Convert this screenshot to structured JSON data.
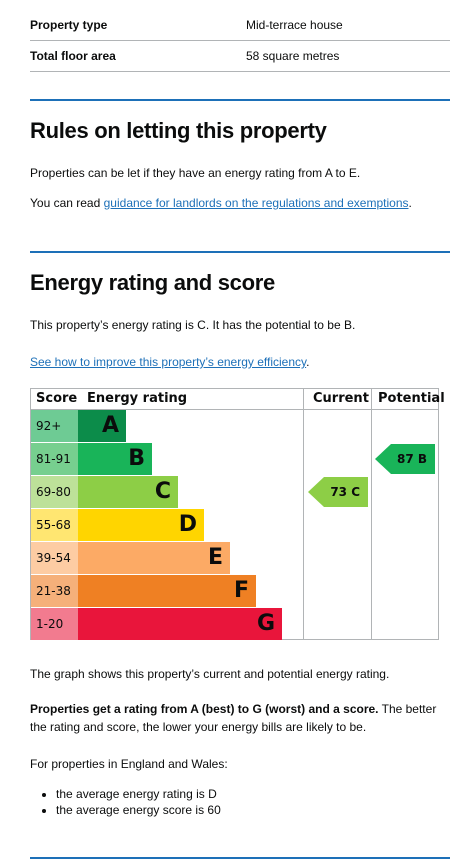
{
  "summary": [
    {
      "key": "Property type",
      "value": "Mid-terrace house"
    },
    {
      "key": "Total floor area",
      "value": "58 square metres"
    }
  ],
  "rules": {
    "heading": "Rules on letting this property",
    "para1": "Properties can be let if they have an energy rating from A to E.",
    "para2_prefix": "You can read ",
    "para2_link": "guidance for landlords on the regulations and exemptions",
    "para2_suffix": "."
  },
  "energy": {
    "heading": "Energy rating and score",
    "intro": "This property’s energy rating is C. It has the potential to be B.",
    "improve_link": "See how to improve this property’s energy efficiency",
    "improve_suffix": ".",
    "chart_headers": {
      "score": "Score",
      "rating": "Energy rating",
      "current": "Current",
      "potential": "Potential"
    },
    "bands": [
      {
        "letter": "A",
        "range": "92+",
        "color": "#0c8c4a",
        "score_bg": "#6ecb94"
      },
      {
        "letter": "B",
        "range": "81-91",
        "color": "#19b459",
        "score_bg": "#77cf8f"
      },
      {
        "letter": "C",
        "range": "69-80",
        "color": "#8dce46",
        "score_bg": "#bde199"
      },
      {
        "letter": "D",
        "range": "55-68",
        "color": "#ffd500",
        "score_bg": "#ffe671"
      },
      {
        "letter": "E",
        "range": "39-54",
        "color": "#fcaa65",
        "score_bg": "#fdcca3"
      },
      {
        "letter": "F",
        "range": "21-38",
        "color": "#ef8023",
        "score_bg": "#f5b07a"
      },
      {
        "letter": "G",
        "range": "1-20",
        "color": "#e9153b",
        "score_bg": "#f27b8f"
      }
    ],
    "current": {
      "label": "73 C",
      "band": "C"
    },
    "potential": {
      "label": "87 B",
      "band": "B"
    },
    "graph_note": "The graph shows this property’s current and potential energy rating.",
    "scale_bold": "Properties get a rating from A (best) to G (worst) and a score.",
    "scale_rest": " The better the rating and score, the lower your energy bills are likely to be.",
    "average_intro": "For properties in England and Wales:",
    "averages": [
      "the average energy rating is D",
      "the average energy score is 60"
    ]
  }
}
